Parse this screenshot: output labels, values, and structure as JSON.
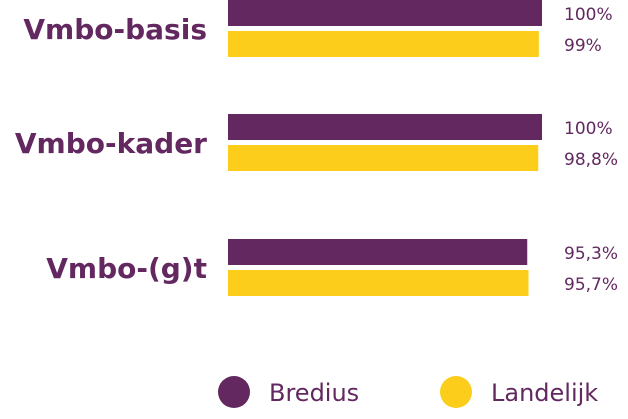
{
  "chart_data": {
    "type": "bar",
    "orientation": "horizontal",
    "categories": [
      "Vmbo-basis",
      "Vmbo-kader",
      "Vmbo-(g)t"
    ],
    "series": [
      {
        "name": "Bredius",
        "values": [
          100,
          100,
          95.3
        ],
        "labels": [
          "100%",
          "100%",
          "95,3%"
        ],
        "color": "#62285f"
      },
      {
        "name": "Landelijk",
        "values": [
          99,
          98.8,
          95.7
        ],
        "labels": [
          "99%",
          "98,8%",
          "95,7%"
        ],
        "color": "#fdcd1b"
      }
    ],
    "xlim": [
      0,
      100
    ],
    "grid": false,
    "legend": "bottom",
    "text_color": "#62285f"
  }
}
